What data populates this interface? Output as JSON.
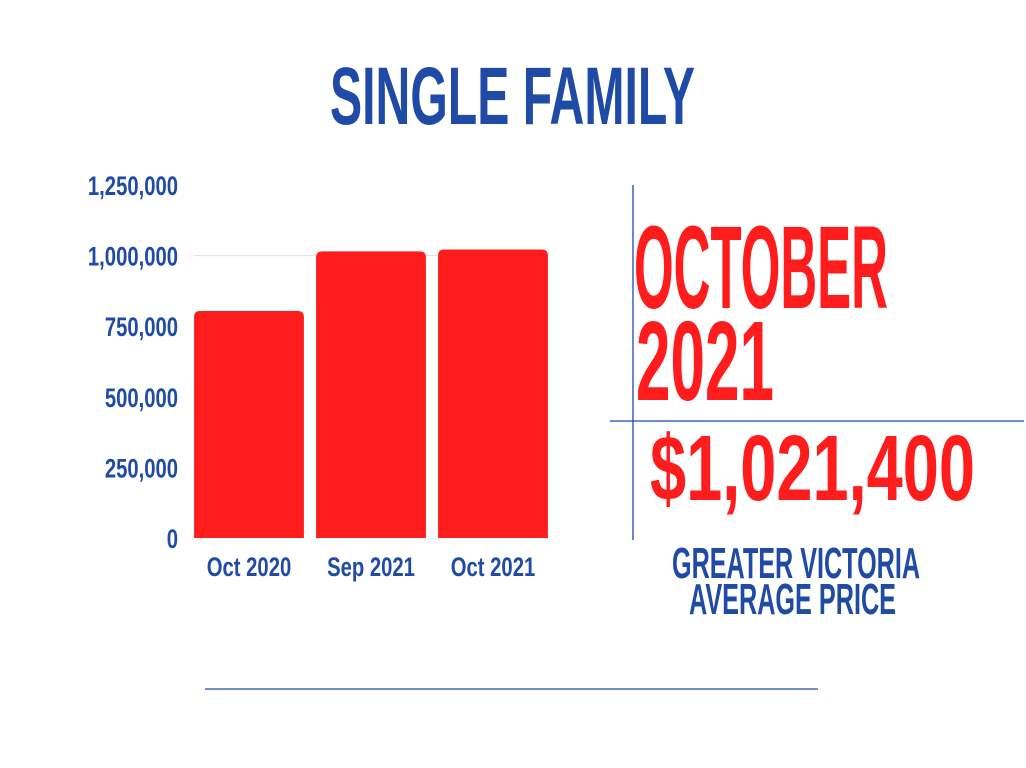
{
  "colors": {
    "primary_blue": "#1f4aa6",
    "accent_red": "#ff1c1c",
    "background": "#ffffff"
  },
  "headline": {
    "month": "OCTOBER",
    "year": "2021",
    "price": "$1,021,400",
    "caption_line1": "GREATER VICTORIA",
    "caption_line2": "AVERAGE PRICE"
  },
  "chart_data": {
    "type": "bar",
    "title": "SINGLE FAMILY",
    "categories": [
      "Oct 2020",
      "Sep 2021",
      "Oct 2021"
    ],
    "values": [
      804000,
      1015000,
      1021400
    ],
    "ylim": [
      0,
      1250000
    ],
    "yticks": [
      0,
      250000,
      500000,
      750000,
      1000000,
      1250000
    ],
    "ytick_labels": [
      "0",
      "250,000",
      "500,000",
      "750,000",
      "1,000,000",
      "1,250,000"
    ],
    "grid": true,
    "gridlines": [
      1000000
    ],
    "legend": "none",
    "bar_color": "#ff1c1c"
  }
}
